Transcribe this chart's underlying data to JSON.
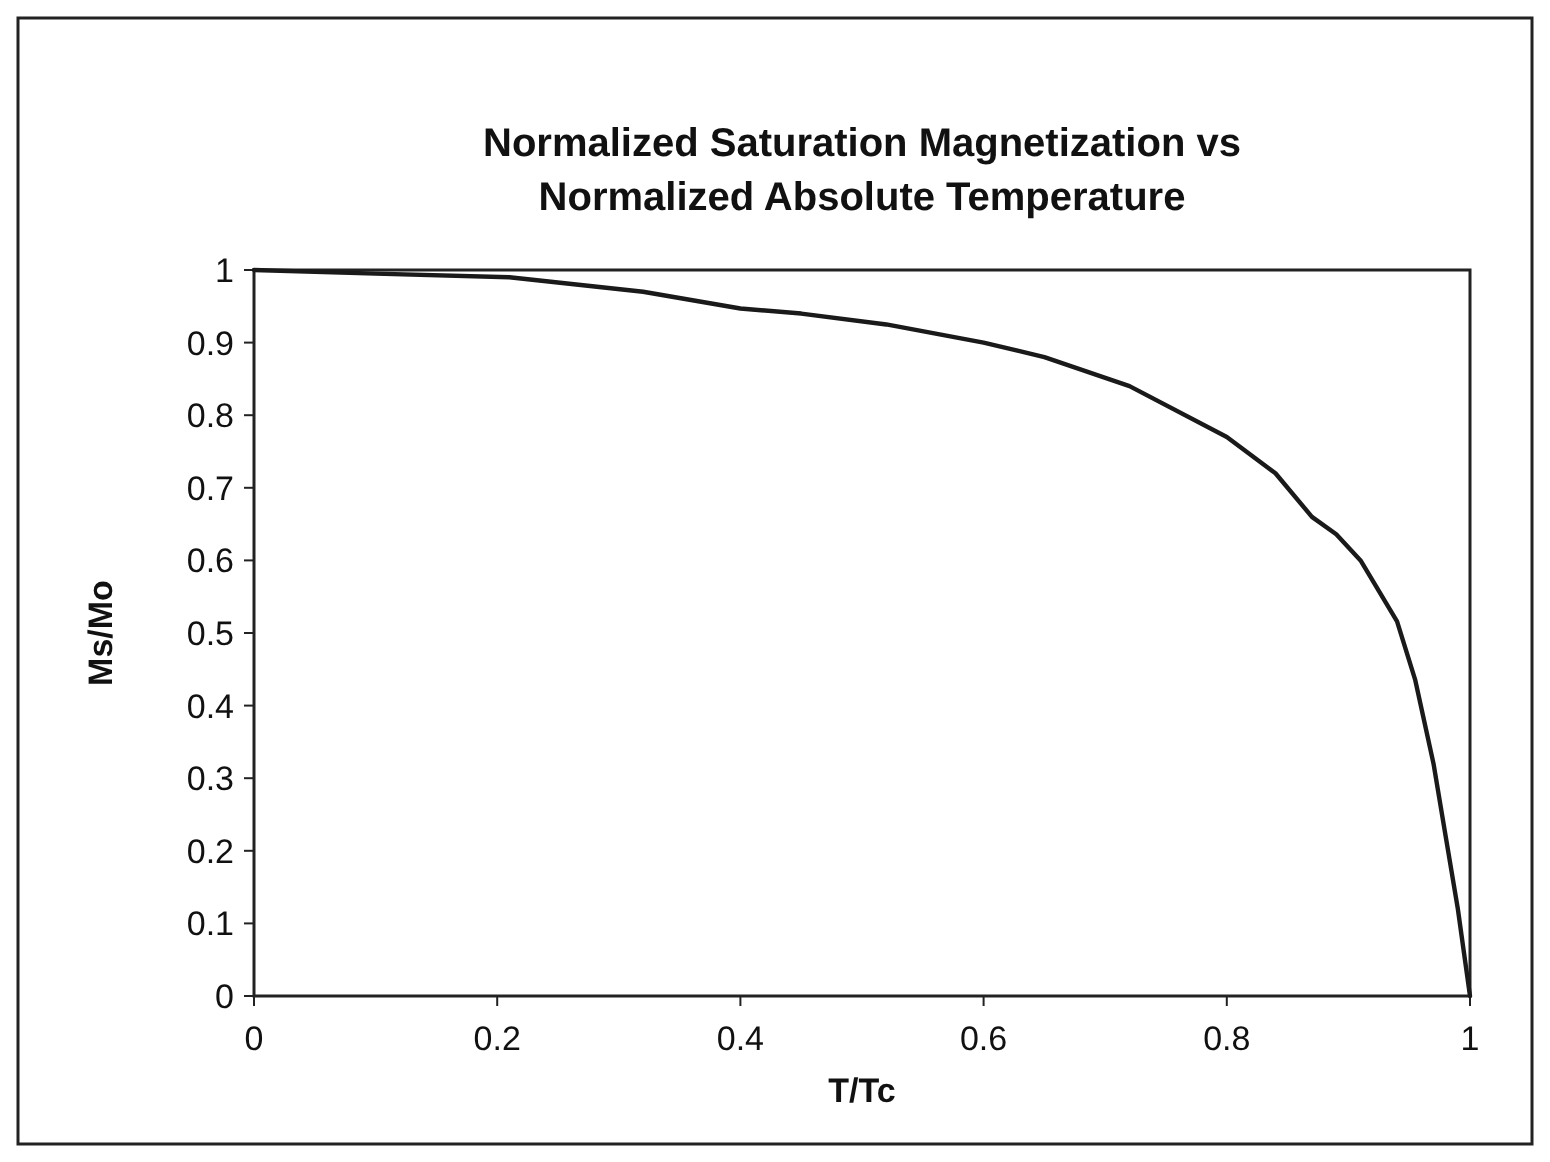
{
  "chart_data": {
    "type": "line",
    "title": "Normalized Saturation Magnetization vs\nNormalized Absolute Temperature",
    "xlabel": "T/Tc",
    "ylabel": "Ms/Mo",
    "x": [
      0,
      0.1,
      0.21,
      0.32,
      0.4,
      0.45,
      0.52,
      0.6,
      0.65,
      0.72,
      0.8,
      0.84,
      0.87,
      0.89,
      0.91,
      0.94,
      0.955,
      0.97,
      0.98,
      0.99,
      1
    ],
    "series": [
      {
        "color": "#1a1a1a",
        "values": [
          1,
          0.995,
          0.99,
          0.97,
          0.947,
          0.94,
          0.925,
          0.9,
          0.88,
          0.84,
          0.77,
          0.72,
          0.66,
          0.636,
          0.6,
          0.516,
          0.435,
          0.32,
          0.22,
          0.12,
          0
        ]
      }
    ],
    "xlim": [
      0,
      1
    ],
    "ylim": [
      0,
      1
    ],
    "xticks": [
      0,
      0.2,
      0.4,
      0.6,
      0.8,
      1
    ],
    "yticks": [
      0,
      0.1,
      0.2,
      0.3,
      0.4,
      0.5,
      0.6,
      0.7,
      0.8,
      0.9,
      1
    ],
    "grid": false,
    "marker": "none",
    "line_style": "solid"
  }
}
